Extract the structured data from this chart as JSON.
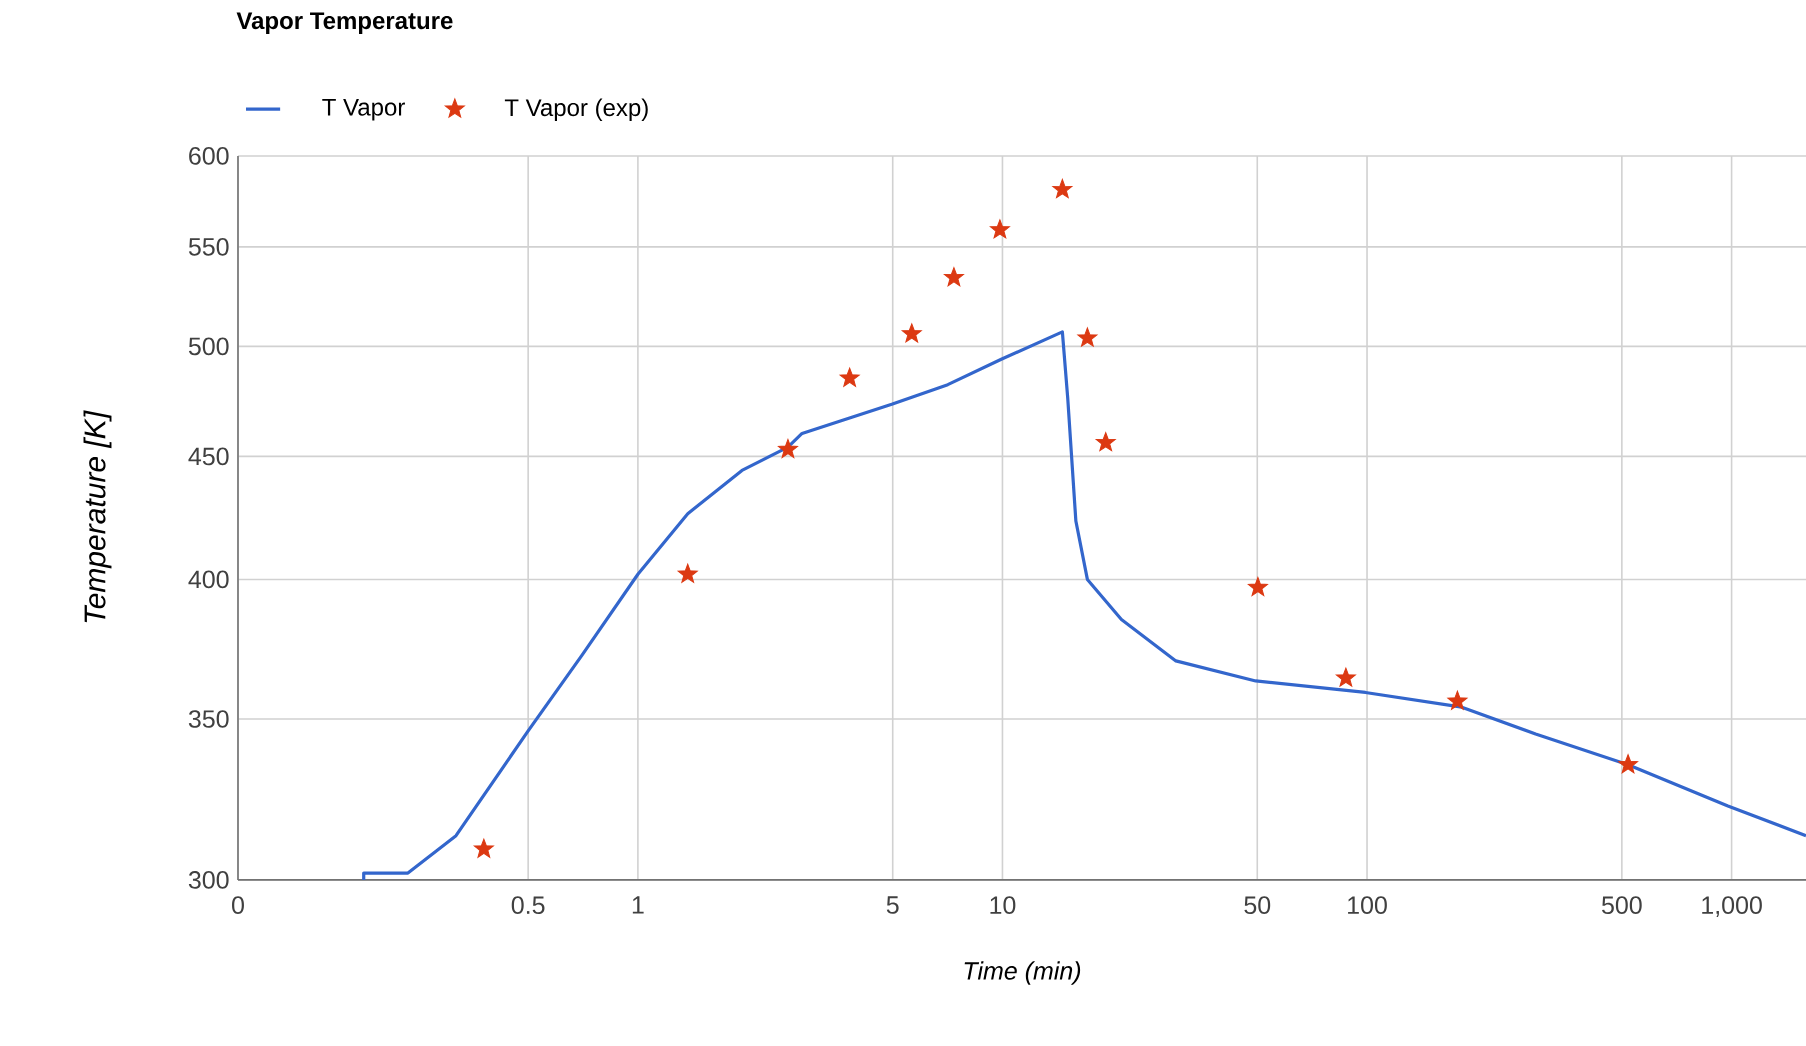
{
  "chart_data": {
    "type": "line",
    "title": "Vapor Temperature",
    "xlabel": "Time (min)",
    "ylabel": "Temperature [K]",
    "log": "xy",
    "grid": true,
    "legend": "top left",
    "xlim": [
      0.08,
      1600
    ],
    "xticks": [
      {
        "value": 0.08,
        "label": "0"
      },
      0.5,
      1,
      5,
      10,
      50,
      100,
      500,
      {
        "value": 1000,
        "label": "1,000"
      }
    ],
    "ylim": [
      300,
      600
    ],
    "yticks": [
      300,
      350,
      400,
      450,
      500,
      550,
      600
    ],
    "series": [
      {
        "name": "T Vapor",
        "color": "#3366cc",
        "marker": "none",
        "line_style": "solid",
        "x": [
          0.177,
          0.177,
          0.234,
          0.317,
          0.5,
          0.702,
          1,
          1.37,
          1.93,
          2.58,
          2.82,
          4.97,
          7.08,
          9.96,
          14.6,
          15.1,
          15.9,
          17.1,
          21.2,
          29.9,
          49.5,
          99,
          182,
          290,
          520,
          977,
          1600
        ],
        "values": [
          300,
          302,
          302,
          313,
          346,
          372,
          402,
          426,
          444,
          454,
          460,
          473,
          482,
          494,
          507,
          476,
          423,
          400,
          385,
          370,
          363,
          359,
          354,
          345,
          335,
          322,
          313
        ]
      },
      {
        "name": "T Vapor (exp)",
        "type": "scatter",
        "color": "#dc3912",
        "marker": "star",
        "x": [
          0.378,
          1.37,
          2.58,
          3.81,
          5.64,
          7.36,
          9.84,
          14.6,
          17.1,
          19.2,
          50.2,
          87.5,
          177,
          520
        ],
        "values": [
          309,
          402,
          453,
          485,
          506,
          534,
          559,
          581,
          504,
          456,
          397,
          364,
          356,
          335
        ]
      }
    ]
  }
}
